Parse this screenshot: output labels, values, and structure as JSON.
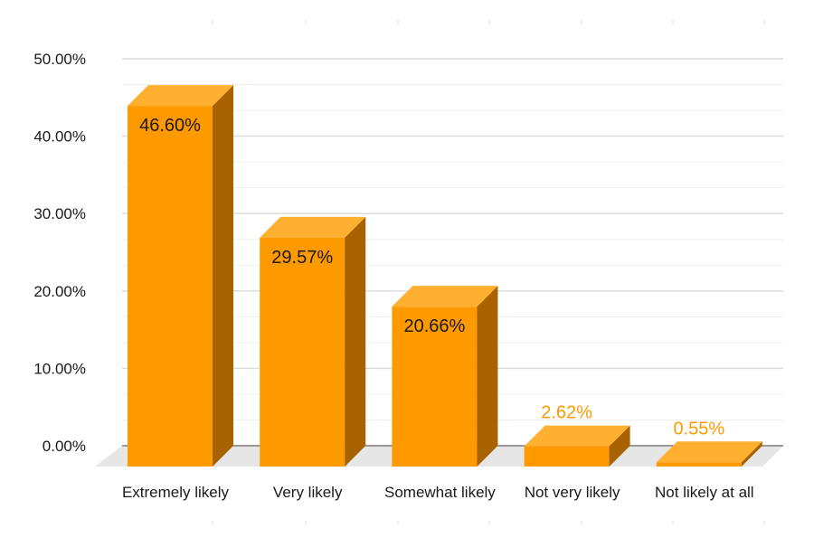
{
  "chart_data": {
    "type": "bar",
    "style": "3d-column",
    "categories": [
      "Extremely likely",
      "Very likely",
      "Somewhat likely",
      "Not very likely",
      "Not likely at all"
    ],
    "values": [
      46.6,
      29.57,
      20.66,
      2.62,
      0.55
    ],
    "data_labels": [
      "46.60%",
      "29.57%",
      "20.66%",
      "2.62%",
      "0.55%"
    ],
    "y_ticks": [
      0,
      10,
      20,
      30,
      40,
      50
    ],
    "y_tick_labels": [
      "0.00%",
      "10.00%",
      "20.00%",
      "30.00%",
      "40.00%",
      "50.00%"
    ],
    "ylim": [
      0,
      50
    ],
    "title": "",
    "xlabel": "",
    "ylabel": "",
    "legend": "none",
    "grid": true,
    "colors": {
      "bar_front": "#FF9900",
      "bar_top": "#FFB030",
      "bar_side": "#A86200",
      "floor": "#E6E6E6",
      "grid_major": "#D9D9D9",
      "grid_minor": "#EFEFEF",
      "axis": "#7F7F7F",
      "label_inside": "#1A1A1A",
      "label_outside": "#FF9900",
      "text": "#1A1A1A"
    }
  }
}
